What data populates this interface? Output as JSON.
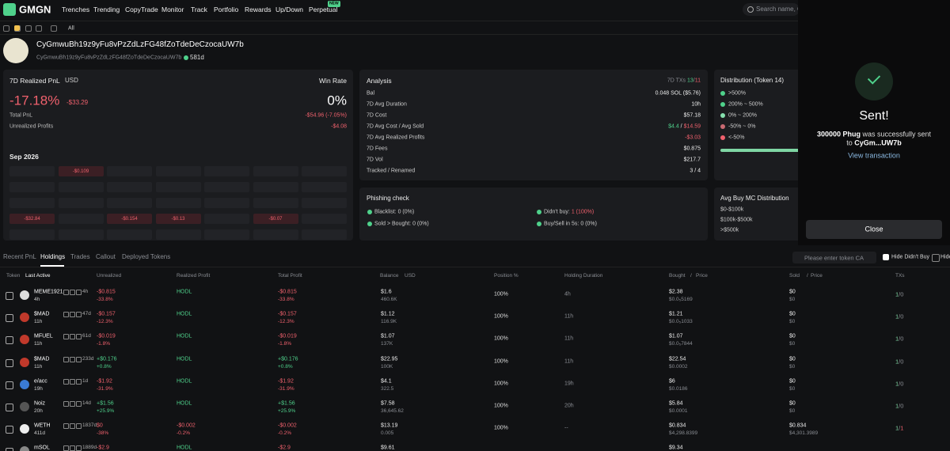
{
  "nav": {
    "brand": "GMGN",
    "links": [
      "Trenches",
      "Trending",
      "CopyTrade",
      "Monitor",
      "Track",
      "Portfolio",
      "Rewards",
      "Up/Down",
      "Perpetual"
    ],
    "badge": "NEW",
    "search": "Search name, C"
  },
  "toolbar": {
    "filter": "All"
  },
  "profile": {
    "name": "CyGmwuBh19z9yFu8vPzZdLzFG48fZoTdeDeCzocaUW7b",
    "address": "CyGmwuBh19z9yFu8vPzZdLzFG48fZoTdeDeCzocaUW7b",
    "age": "581d"
  },
  "pnl": {
    "title": "7D Realized PnL",
    "currency": "USD",
    "win_rate_label": "Win Rate",
    "pnl": "-17.18%",
    "pnl_usd": "-$33.29",
    "win_rate": "0%",
    "rows": [
      {
        "label": "Total PnL",
        "value": "-$54.96 (-7.05%)"
      },
      {
        "label": "Unrealized Profits",
        "value": "-$4.08"
      }
    ],
    "month": "Sep 2026",
    "calendar": [
      [
        null,
        "-$0.109",
        null,
        null,
        null,
        null,
        null
      ],
      [
        null,
        null,
        null,
        null,
        null,
        null,
        null
      ],
      [
        null,
        null,
        null,
        null,
        null,
        null,
        null
      ],
      [
        "-$32.84",
        null,
        "-$0.154",
        "-$0.13",
        null,
        "-$0.07",
        null
      ],
      [
        null,
        null,
        null,
        null,
        null,
        null,
        null
      ]
    ]
  },
  "analysis": {
    "title": "Analysis",
    "txs_label": "7D TXs",
    "txs": [
      "13",
      "/",
      "11"
    ],
    "rows": [
      {
        "label": "Bal",
        "value": [
          "0.048 SOL ($5.76)"
        ]
      },
      {
        "label": "7D Avg Duration",
        "value": [
          "10h"
        ]
      },
      {
        "label": "7D Cost",
        "value": [
          "$57.18"
        ]
      },
      {
        "label": "7D Avg Cost / Avg Sold",
        "value": [
          "$4.4",
          " / ",
          "$14.59"
        ],
        "tones": [
          "green",
          null,
          "red"
        ]
      },
      {
        "label": "7D Avg Realized Profits",
        "value": [
          "-$3.03"
        ],
        "tones": [
          "red"
        ]
      },
      {
        "label": "7D Fees",
        "value": [
          "$0.875"
        ]
      },
      {
        "label": "7D Vol",
        "value": [
          "$217.7"
        ]
      },
      {
        "label": "Tracked / Renamed",
        "value": [
          "3 / 4"
        ]
      }
    ]
  },
  "distribution": {
    "title": "Distribution (Token 14)",
    "items": [
      ">500%",
      "200% ~ 500%",
      "0% ~ 200%",
      "-50% ~ 0%",
      "<-50%"
    ],
    "colors": [
      "#4fd18b",
      "#4fd18b",
      "#86e0ae",
      "#c96a72",
      "#f0616d"
    ]
  },
  "phishing": {
    "title": "Phishing check",
    "items": [
      {
        "label": "Blacklist:",
        "value": "0 (0%)"
      },
      {
        "label": "Didn't buy:",
        "value": "1 (100%)",
        "tone": "red"
      },
      {
        "label": "Sold > Bought:",
        "value": "0 (0%)"
      },
      {
        "label": "Buy/Sell in 5s:",
        "value": "0 (0%)"
      }
    ]
  },
  "avg_mc": {
    "title": "Avg Buy MC Distribution",
    "items": [
      "$0-$100k",
      "$100k-$500k",
      ">$500k"
    ]
  },
  "tabs": {
    "items": [
      "Recent PnL",
      "Holdings",
      "Trades",
      "Callout",
      "Deployed Tokens"
    ],
    "active": 1,
    "search": "Please enter token CA",
    "check1": "Hide Didn't Buy",
    "check2": "Hide"
  },
  "table": {
    "header": [
      "Token",
      "Last Active",
      "Unrealized",
      "Realized Profit",
      "Total Profit",
      "Balance",
      "USD",
      "Position %",
      "Holding Duration",
      "Bought",
      "/",
      "Price",
      "Sold",
      "/",
      "Price",
      "TXs"
    ],
    "rows": [
      {
        "token": "MEME1921",
        "stat": "4h",
        "age": "4h",
        "unrealized": "-$0.815",
        "unrealized_pct": "-33.8%",
        "realized": "HODL",
        "total": "-$0.815",
        "total_pct": "-33.8%",
        "balance": "$1.6",
        "amount": "460.6K",
        "position": "100%",
        "duration": "4h",
        "bought": "$2.38",
        "bought_price": "$0.0₅5169",
        "sold": "$0",
        "sold_price": "$0",
        "txs": [
          "1",
          "/",
          "0"
        ]
      },
      {
        "token": "$MAD",
        "stat": "47d",
        "age": "11h",
        "unrealized": "-$0.157",
        "unrealized_pct": "-12.3%",
        "realized": "HODL",
        "total": "-$0.157",
        "total_pct": "-12.3%",
        "balance": "$1.12",
        "amount": "116.9K",
        "position": "100%",
        "duration": "11h",
        "bought": "$1.21",
        "bought_price": "$0.0₅1033",
        "sold": "$0",
        "sold_price": "$0",
        "txs": [
          "1",
          "/",
          "0"
        ]
      },
      {
        "token": "MFUEL",
        "stat": "61d",
        "age": "11h",
        "unrealized": "-$0.019",
        "unrealized_pct": "-1.8%",
        "realized": "HODL",
        "total": "-$0.019",
        "total_pct": "-1.8%",
        "balance": "$1.07",
        "amount": "137K",
        "position": "100%",
        "duration": "11h",
        "bought": "$1.07",
        "bought_price": "$0.0₅7844",
        "sold": "$0",
        "sold_price": "$0",
        "txs": [
          "1",
          "/",
          "0"
        ]
      },
      {
        "token": "$MAD",
        "stat": "233d",
        "age": "11h",
        "unrealized": "+$0.176",
        "unrealized_pct": "+0.8%",
        "realized": "HODL",
        "total": "+$0.176",
        "total_pct": "+0.8%",
        "balance": "$22.95",
        "amount": "100K",
        "position": "100%",
        "duration": "11h",
        "bought": "$22.54",
        "bought_price": "$0.0002",
        "sold": "$0",
        "sold_price": "$0",
        "txs": [
          "1",
          "/",
          "0"
        ]
      },
      {
        "token": "e/acc",
        "stat": "1d",
        "age": "19h",
        "unrealized": "-$1.92",
        "unrealized_pct": "-31.9%",
        "realized": "HODL",
        "total": "-$1.92",
        "total_pct": "-31.9%",
        "balance": "$4.1",
        "amount": "322.5",
        "position": "100%",
        "duration": "19h",
        "bought": "$6",
        "bought_price": "$0.0186",
        "sold": "$0",
        "sold_price": "$0",
        "txs": [
          "1",
          "/",
          "0"
        ]
      },
      {
        "token": "Noiz",
        "stat": "14d",
        "age": "20h",
        "unrealized": "+$1.56",
        "unrealized_pct": "+25.9%",
        "realized": "HODL",
        "total": "+$1.56",
        "total_pct": "+25.9%",
        "balance": "$7.58",
        "amount": "36,645.62",
        "position": "100%",
        "duration": "20h",
        "bought": "$5.84",
        "bought_price": "$0.0001",
        "sold": "$0",
        "sold_price": "$0",
        "txs": [
          "1",
          "/",
          "0"
        ]
      },
      {
        "token": "WETH",
        "stat": "1837d",
        "age": "411d",
        "unrealized": "$0",
        "unrealized_pct": "-38%",
        "tone": "red",
        "realized": "-$0.002",
        "realized_pct": "-0.2%",
        "total": "-$0.002",
        "total_pct": "-0.2%",
        "balance": "$13.19",
        "amount": "0.005",
        "position": "100%",
        "duration": "--",
        "bought": "$0.834",
        "bought_price": "$4,298.8399",
        "sold": "$0.834",
        "sold_price": "$4,301.3989",
        "txs": [
          "1",
          "/",
          "1"
        ]
      },
      {
        "token": "mSOL",
        "stat": "1889d",
        "unrealized": "-$2.9",
        "realized": "HODL",
        "total": "-$2.9",
        "balance": "$9.61",
        "bought": "$9.34"
      }
    ]
  },
  "modal": {
    "title": "Sent!",
    "line1": [
      {
        "text": "300000 Phug",
        "bold": true
      },
      {
        "text": " was successfully sent"
      }
    ],
    "line2": [
      {
        "text": "to "
      },
      {
        "text": "CyGm...UW7b",
        "bold": true
      }
    ],
    "link": "View transaction",
    "button": "Close"
  }
}
